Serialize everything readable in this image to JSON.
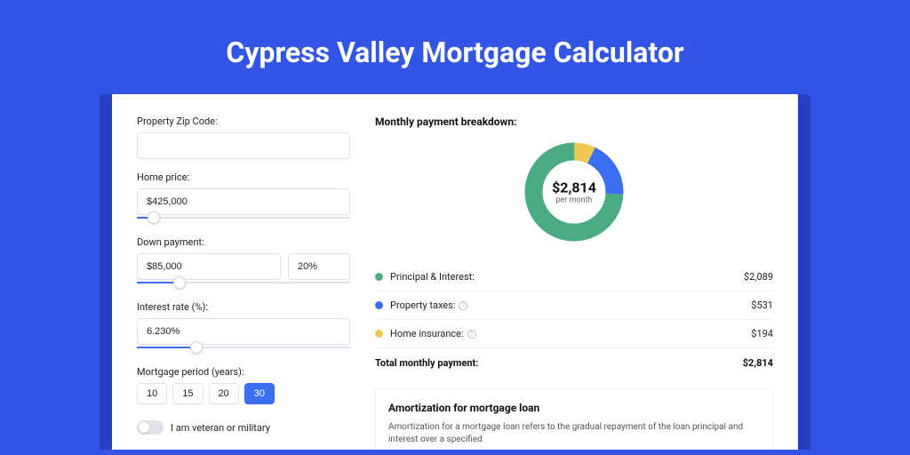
{
  "page_title": "Cypress Valley Mortgage Calculator",
  "colors": {
    "page_bg": "#3355e5",
    "accent": "#3b6ef0",
    "principal": "#4bab82",
    "taxes": "#3b6ef0",
    "insurance": "#eec850"
  },
  "form": {
    "zip_label": "Property Zip Code:",
    "zip_value": "",
    "home_price_label": "Home price:",
    "home_price_value": "$425,000",
    "home_price_slider_pct": 8,
    "down_payment_label": "Down payment:",
    "down_payment_value": "$85,000",
    "down_payment_pct": "20%",
    "down_payment_slider_pct": 20,
    "interest_label": "Interest rate (%):",
    "interest_value": "6.230%",
    "interest_slider_pct": 28,
    "period_label": "Mortgage period (years):",
    "period_options": [
      "10",
      "15",
      "20",
      "30"
    ],
    "period_selected": "30",
    "veteran_label": "I am veteran or military",
    "veteran_on": false
  },
  "breakdown": {
    "title": "Monthly payment breakdown:",
    "center_amount": "$2,814",
    "center_sub": "per month",
    "items": [
      {
        "label": "Principal & Interest:",
        "value": "$2,089",
        "color": "#4bab82",
        "has_info": false,
        "pct": 74.2
      },
      {
        "label": "Property taxes:",
        "value": "$531",
        "color": "#3b6ef0",
        "has_info": true,
        "pct": 18.9
      },
      {
        "label": "Home insurance:",
        "value": "$194",
        "color": "#eec850",
        "has_info": true,
        "pct": 6.9
      }
    ],
    "total_label": "Total monthly payment:",
    "total_value": "$2,814"
  },
  "amortization": {
    "title": "Amortization for mortgage loan",
    "text": "Amortization for a mortgage loan refers to the gradual repayment of the loan principal and interest over a specified"
  }
}
